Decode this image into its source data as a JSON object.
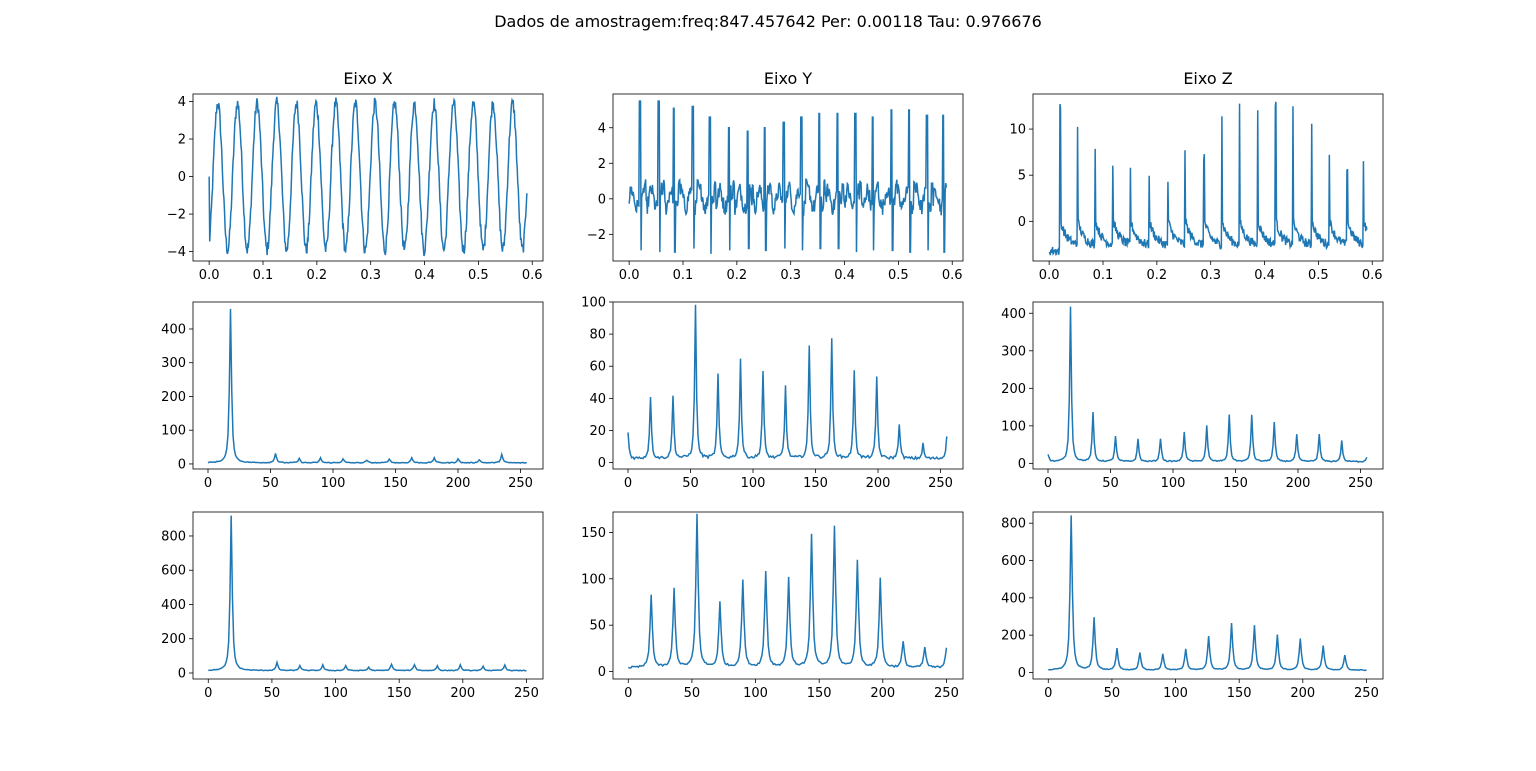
{
  "figure": {
    "suptitle": "Dados de amostragem:freq:847.457642 Per: 0.00118 Tau: 0.976676",
    "line_color": "#1f77b4"
  },
  "chart_data": [
    {
      "type": "line",
      "title": "Eixo X",
      "xlim": [
        -0.03,
        0.62
      ],
      "ylim": [
        -4.5,
        4.4
      ],
      "xticks": [
        0.0,
        0.1,
        0.2,
        0.3,
        0.4,
        0.5,
        0.6
      ],
      "xtick_labels": [
        "0.0",
        "0.1",
        "0.2",
        "0.3",
        "0.4",
        "0.5",
        "0.6"
      ],
      "yticks": [
        -4,
        -2,
        0,
        2,
        4
      ],
      "ytick_labels": [
        "−4",
        "−2",
        "0",
        "2",
        "4"
      ],
      "signal": {
        "kind": "sine",
        "period": 0.0365,
        "amplitude": 3.9,
        "noise": 0.35,
        "n": 560,
        "x_end": 0.59
      }
    },
    {
      "type": "line",
      "title": "Eixo Y",
      "xlim": [
        -0.03,
        0.62
      ],
      "ylim": [
        -3.5,
        5.9
      ],
      "xticks": [
        0.0,
        0.1,
        0.2,
        0.3,
        0.4,
        0.5,
        0.6
      ],
      "xtick_labels": [
        "0.0",
        "0.1",
        "0.2",
        "0.3",
        "0.4",
        "0.5",
        "0.6"
      ],
      "yticks": [
        -2,
        0,
        2,
        4
      ],
      "ytick_labels": [
        "−2",
        "0",
        "2",
        "4"
      ],
      "signal": {
        "kind": "spikes",
        "n": 560,
        "x_end": 0.59,
        "spike_x": [
          0.02,
          0.055,
          0.083,
          0.118,
          0.15,
          0.185,
          0.22,
          0.252,
          0.287,
          0.32,
          0.353,
          0.387,
          0.42,
          0.452,
          0.487,
          0.52,
          0.553,
          0.583
        ],
        "spike_top": [
          5.5,
          5.5,
          5.1,
          5.2,
          4.6,
          4.0,
          3.8,
          4.0,
          4.3,
          4.6,
          4.8,
          4.8,
          4.8,
          4.6,
          5.0,
          5.0,
          4.7,
          4.7
        ],
        "spike_bottom": [
          -2.9,
          -3.0,
          -3.0,
          -2.8,
          -3.1,
          -2.9,
          -2.8,
          -2.9,
          -2.8,
          -2.9,
          -2.8,
          -2.8,
          -3.0,
          -2.9,
          -2.9,
          -3.0,
          -2.9,
          -3.0
        ]
      }
    },
    {
      "type": "line",
      "title": "Eixo Z",
      "xlim": [
        -0.03,
        0.62
      ],
      "ylim": [
        -4.3,
        13.8
      ],
      "xticks": [
        0.0,
        0.1,
        0.2,
        0.3,
        0.4,
        0.5,
        0.6
      ],
      "xtick_labels": [
        "0.0",
        "0.1",
        "0.2",
        "0.3",
        "0.4",
        "0.5",
        "0.6"
      ],
      "yticks": [
        0,
        5,
        10
      ],
      "ytick_labels": [
        "0",
        "5",
        "10"
      ],
      "signal": {
        "kind": "decay",
        "n": 560,
        "x_end": 0.59,
        "spike_x": [
          0.02,
          0.052,
          0.085,
          0.118,
          0.15,
          0.185,
          0.22,
          0.252,
          0.287,
          0.32,
          0.353,
          0.387,
          0.42,
          0.452,
          0.487,
          0.52,
          0.553,
          0.583
        ],
        "spike_top": [
          12.4,
          10.7,
          8.2,
          6.4,
          5.6,
          4.6,
          4.3,
          7.3,
          7.1,
          11.6,
          12.3,
          12.4,
          13.0,
          12.8,
          10.8,
          7.6,
          5.9,
          6.3
        ],
        "base": -3.2
      }
    },
    {
      "type": "line",
      "xlim": [
        -12,
        268
      ],
      "ylim": [
        -15,
        480
      ],
      "xticks": [
        0,
        50,
        100,
        150,
        200,
        250
      ],
      "xtick_labels": [
        "0",
        "50",
        "100",
        "150",
        "200",
        "250"
      ],
      "yticks": [
        0,
        100,
        200,
        300,
        400
      ],
      "ytick_labels": [
        "0",
        "100",
        "200",
        "300",
        "400"
      ],
      "signal": {
        "kind": "peaks",
        "x_max": 255,
        "base": 2,
        "floor_noise": 2.5,
        "peaks": [
          [
            18,
            455
          ],
          [
            54,
            28
          ],
          [
            73,
            12
          ],
          [
            90,
            14
          ],
          [
            108,
            12
          ],
          [
            127,
            8
          ],
          [
            145,
            12
          ],
          [
            163,
            15
          ],
          [
            181,
            15
          ],
          [
            200,
            12
          ],
          [
            217,
            10
          ],
          [
            235,
            25
          ]
        ],
        "width": 1.4
      }
    },
    {
      "type": "line",
      "xlim": [
        -12,
        268
      ],
      "ylim": [
        -4,
        100
      ],
      "xticks": [
        0,
        50,
        100,
        150,
        200,
        250
      ],
      "xtick_labels": [
        "0",
        "50",
        "100",
        "150",
        "200",
        "250"
      ],
      "yticks": [
        0,
        20,
        40,
        60,
        80,
        100
      ],
      "ytick_labels": [
        "0",
        "20",
        "40",
        "60",
        "80",
        "100"
      ],
      "signal": {
        "kind": "peaks",
        "x_max": 255,
        "base": 1.5,
        "floor_noise": 1.8,
        "peaks": [
          [
            0,
            16
          ],
          [
            18,
            39
          ],
          [
            36,
            39
          ],
          [
            54,
            95
          ],
          [
            72,
            52
          ],
          [
            90,
            62
          ],
          [
            108,
            54
          ],
          [
            126,
            45
          ],
          [
            145,
            70
          ],
          [
            163,
            74
          ],
          [
            181,
            55
          ],
          [
            199,
            51
          ],
          [
            217,
            22
          ],
          [
            236,
            9
          ],
          [
            255,
            14
          ]
        ],
        "width": 1.2
      }
    },
    {
      "type": "line",
      "xlim": [
        -12,
        268
      ],
      "ylim": [
        -15,
        430
      ],
      "xticks": [
        0,
        50,
        100,
        150,
        200,
        250
      ],
      "xtick_labels": [
        "0",
        "50",
        "100",
        "150",
        "200",
        "250"
      ],
      "yticks": [
        0,
        100,
        200,
        300,
        400
      ],
      "ytick_labels": [
        "0",
        "100",
        "200",
        "300",
        "400"
      ],
      "signal": {
        "kind": "peaks",
        "x_max": 255,
        "base": 3,
        "floor_noise": 3,
        "peaks": [
          [
            0,
            20
          ],
          [
            18,
            412
          ],
          [
            36,
            130
          ],
          [
            54,
            68
          ],
          [
            72,
            60
          ],
          [
            90,
            62
          ],
          [
            109,
            80
          ],
          [
            127,
            95
          ],
          [
            145,
            125
          ],
          [
            163,
            125
          ],
          [
            181,
            105
          ],
          [
            199,
            72
          ],
          [
            217,
            72
          ],
          [
            235,
            55
          ],
          [
            255,
            12
          ]
        ],
        "width": 1.2
      }
    },
    {
      "type": "line",
      "xlim": [
        -12,
        263
      ],
      "ylim": [
        -35,
        940
      ],
      "xticks": [
        0,
        50,
        100,
        150,
        200,
        250
      ],
      "xtick_labels": [
        "0",
        "50",
        "100",
        "150",
        "200",
        "250"
      ],
      "yticks": [
        0,
        200,
        400,
        600,
        800
      ],
      "ytick_labels": [
        "0",
        "200",
        "400",
        "600",
        "800"
      ],
      "signal": {
        "kind": "peaks",
        "x_max": 250,
        "base": 12,
        "floor_noise": 4,
        "peaks": [
          [
            18,
            905
          ],
          [
            54,
            45
          ],
          [
            72,
            30
          ],
          [
            90,
            32
          ],
          [
            108,
            28
          ],
          [
            126,
            20
          ],
          [
            144,
            38
          ],
          [
            162,
            36
          ],
          [
            180,
            28
          ],
          [
            198,
            32
          ],
          [
            216,
            24
          ],
          [
            233,
            32
          ]
        ],
        "width": 1.4
      }
    },
    {
      "type": "line",
      "xlim": [
        -12,
        263
      ],
      "ylim": [
        -8,
        172
      ],
      "xticks": [
        0,
        50,
        100,
        150,
        200,
        250
      ],
      "xtick_labels": [
        "0",
        "50",
        "100",
        "150",
        "200",
        "250"
      ],
      "yticks": [
        0,
        50,
        100,
        150
      ],
      "ytick_labels": [
        "0",
        "50",
        "100",
        "150"
      ],
      "signal": {
        "kind": "peaks",
        "x_max": 250,
        "base": 3,
        "floor_noise": 2,
        "peaks": [
          [
            18,
            78
          ],
          [
            36,
            85
          ],
          [
            54,
            165
          ],
          [
            72,
            70
          ],
          [
            90,
            94
          ],
          [
            108,
            104
          ],
          [
            126,
            97
          ],
          [
            144,
            143
          ],
          [
            162,
            152
          ],
          [
            180,
            116
          ],
          [
            198,
            96
          ],
          [
            216,
            28
          ],
          [
            233,
            22
          ],
          [
            250,
            22
          ]
        ],
        "width": 1.6
      }
    },
    {
      "type": "line",
      "xlim": [
        -12,
        263
      ],
      "ylim": [
        -35,
        860
      ],
      "xticks": [
        0,
        50,
        100,
        150,
        200,
        250
      ],
      "xtick_labels": [
        "0",
        "50",
        "100",
        "150",
        "200",
        "250"
      ],
      "yticks": [
        0,
        200,
        400,
        600,
        800
      ],
      "ytick_labels": [
        "0",
        "200",
        "400",
        "600",
        "800"
      ],
      "signal": {
        "kind": "peaks",
        "x_max": 250,
        "base": 10,
        "floor_noise": 4,
        "peaks": [
          [
            18,
            830
          ],
          [
            36,
            280
          ],
          [
            54,
            115
          ],
          [
            72,
            95
          ],
          [
            90,
            85
          ],
          [
            108,
            115
          ],
          [
            126,
            180
          ],
          [
            144,
            250
          ],
          [
            162,
            240
          ],
          [
            180,
            190
          ],
          [
            198,
            170
          ],
          [
            216,
            130
          ],
          [
            233,
            80
          ]
        ],
        "width": 1.5
      }
    }
  ]
}
